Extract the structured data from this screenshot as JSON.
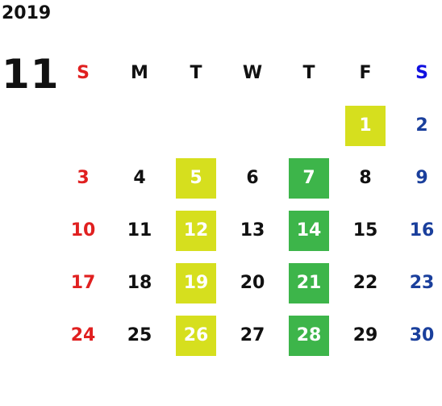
{
  "year": "2019",
  "month": "11",
  "weekdays": [
    "S",
    "M",
    "T",
    "W",
    "T",
    "F",
    "S"
  ],
  "colors": {
    "sunday": "#e02020",
    "saturday": "#1a3f9c",
    "highlight_yellow": "#d6df1e",
    "highlight_green": "#3db54a"
  },
  "weeks": [
    [
      "",
      "",
      "",
      "",
      "",
      "1",
      "2"
    ],
    [
      "3",
      "4",
      "5",
      "6",
      "7",
      "8",
      "9"
    ],
    [
      "10",
      "11",
      "12",
      "13",
      "14",
      "15",
      "16"
    ],
    [
      "17",
      "18",
      "19",
      "20",
      "21",
      "22",
      "23"
    ],
    [
      "24",
      "25",
      "26",
      "27",
      "28",
      "29",
      "30"
    ]
  ],
  "highlighted_yellow": [
    "1",
    "5",
    "12",
    "19",
    "26"
  ],
  "highlighted_green": [
    "7",
    "14",
    "21",
    "28"
  ]
}
